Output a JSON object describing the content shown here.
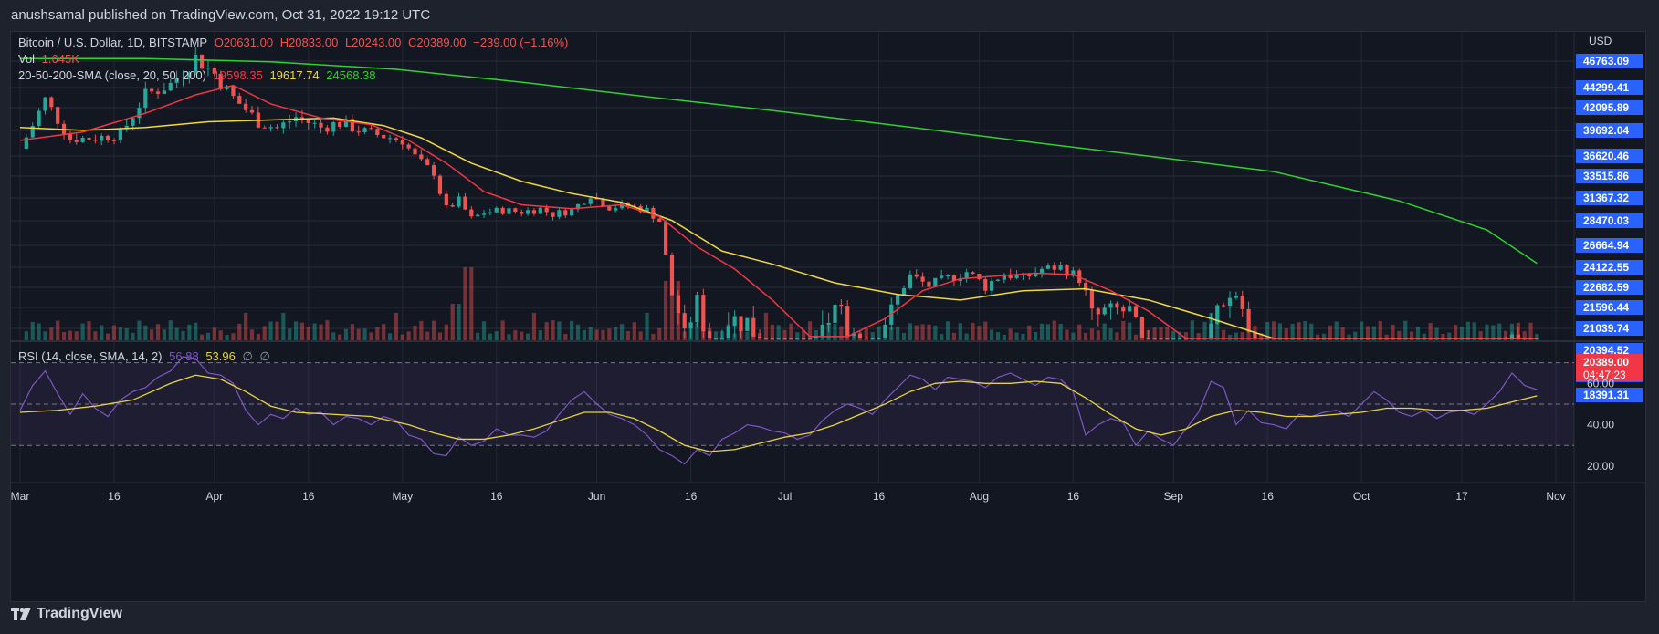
{
  "publish_line": "anushsamal published on TradingView.com, Oct 31, 2022 19:12 UTC",
  "brand": "TradingView",
  "colors": {
    "up": "#26a69a",
    "down": "#ef5350",
    "sma20": "#f23645",
    "sma50": "#f0d93c",
    "sma200": "#2fd22f",
    "rsi": "#7e57c2",
    "rsi_ma": "#e8d43a",
    "price_tag": "#f23645",
    "axis_tag": "#2962ff"
  },
  "legend": {
    "symbol": "Bitcoin / U.S. Dollar, 1D, BITSTAMP",
    "open": "O20631.00",
    "high": "H20833.00",
    "low": "L20243.00",
    "close": "C20389.00",
    "change": "−239.00 (−1.16%)",
    "vol_label": "Vol",
    "vol_value": "1.645K",
    "sma_label": "20-50-200-SMA (close, 20, 50, 200)",
    "sma20_value": "19598.35",
    "sma50_value": "19617.74",
    "sma200_value": "24568.38",
    "rsi_label": "RSI (14, close, SMA, 14, 2)",
    "rsi_value": "56.88",
    "rsi_ma_value": "53.96",
    "rsi_extra1": "∅",
    "rsi_extra2": "∅"
  },
  "chart_data": {
    "type": "candlestick",
    "currency": "USD",
    "last_price": "20389.00",
    "countdown": "04:47:23",
    "price_ticks": [
      "46763.09",
      "44299.41",
      "42095.89",
      "39692.04",
      "36620.46",
      "33515.86",
      "31367.32",
      "28470.03",
      "26664.94",
      "24122.55",
      "22682.59",
      "21596.44",
      "21039.74",
      "20394.52",
      "19544.76",
      "18391.31"
    ],
    "price_tick_values": [
      46763.09,
      44299.41,
      42095.89,
      39692.04,
      36620.46,
      33515.86,
      31367.32,
      28470.03,
      26664.94,
      24122.55,
      22682.59,
      21596.44,
      21039.74,
      20394.52,
      19544.76,
      18391.31
    ],
    "rsi_ticks": [
      "60.00",
      "40.00",
      "20.00"
    ],
    "rsi_tick_values": [
      60,
      40,
      20
    ],
    "rsi_bands": [
      70,
      50,
      30
    ],
    "time_labels": [
      {
        "t": "Mar",
        "d": 0
      },
      {
        "t": "16",
        "d": 15
      },
      {
        "t": "Apr",
        "d": 31
      },
      {
        "t": "16",
        "d": 46
      },
      {
        "t": "May",
        "d": 61
      },
      {
        "t": "16",
        "d": 76
      },
      {
        "t": "Jun",
        "d": 92
      },
      {
        "t": "16",
        "d": 107
      },
      {
        "t": "Jul",
        "d": 122
      },
      {
        "t": "16",
        "d": 137
      },
      {
        "t": "Aug",
        "d": 153
      },
      {
        "t": "16",
        "d": 168
      },
      {
        "t": "Sep",
        "d": 184
      },
      {
        "t": "16",
        "d": 199
      },
      {
        "t": "Oct",
        "d": 214
      },
      {
        "t": "17",
        "d": 230
      },
      {
        "t": "Nov",
        "d": 245
      }
    ],
    "close_path": [
      [
        0,
        37500
      ],
      [
        4,
        43000
      ],
      [
        8,
        38700
      ],
      [
        12,
        38800
      ],
      [
        16,
        39200
      ],
      [
        20,
        43500
      ],
      [
        24,
        44600
      ],
      [
        28,
        47100
      ],
      [
        31,
        45600
      ],
      [
        34,
        43200
      ],
      [
        38,
        40600
      ],
      [
        41,
        39900
      ],
      [
        44,
        41100
      ],
      [
        48,
        40000
      ],
      [
        51,
        40500
      ],
      [
        55,
        39500
      ],
      [
        58,
        39000
      ],
      [
        61,
        38500
      ],
      [
        63,
        36500
      ],
      [
        66,
        34000
      ],
      [
        68,
        30000
      ],
      [
        70,
        31000
      ],
      [
        72,
        28700
      ],
      [
        74,
        29500
      ],
      [
        77,
        29800
      ],
      [
        80,
        29600
      ],
      [
        83,
        30000
      ],
      [
        85,
        29300
      ],
      [
        88,
        29800
      ],
      [
        91,
        31800
      ],
      [
        94,
        30200
      ],
      [
        97,
        30400
      ],
      [
        100,
        29800
      ],
      [
        102,
        28500
      ],
      [
        104,
        22300
      ],
      [
        106,
        20700
      ],
      [
        108,
        22000
      ],
      [
        110,
        20400
      ],
      [
        113,
        21300
      ],
      [
        116,
        21200
      ],
      [
        118,
        20700
      ],
      [
        121,
        20000
      ],
      [
        124,
        19900
      ],
      [
        127,
        20500
      ],
      [
        130,
        21700
      ],
      [
        133,
        20900
      ],
      [
        136,
        20800
      ],
      [
        139,
        21500
      ],
      [
        142,
        23500
      ],
      [
        145,
        22800
      ],
      [
        148,
        23300
      ],
      [
        151,
        23800
      ],
      [
        154,
        22800
      ],
      [
        157,
        23700
      ],
      [
        160,
        23300
      ],
      [
        163,
        24000
      ],
      [
        166,
        24200
      ],
      [
        169,
        23300
      ],
      [
        171,
        21300
      ],
      [
        174,
        21500
      ],
      [
        177,
        21500
      ],
      [
        180,
        20000
      ],
      [
        183,
        19800
      ],
      [
        186,
        19900
      ],
      [
        188,
        19700
      ],
      [
        191,
        21700
      ],
      [
        194,
        22300
      ],
      [
        197,
        20100
      ],
      [
        200,
        19600
      ],
      [
        203,
        18800
      ],
      [
        206,
        19200
      ],
      [
        209,
        19300
      ],
      [
        212,
        19500
      ],
      [
        215,
        19700
      ],
      [
        218,
        19500
      ],
      [
        221,
        19000
      ],
      [
        224,
        19200
      ],
      [
        227,
        19100
      ],
      [
        230,
        19300
      ],
      [
        233,
        19400
      ],
      [
        236,
        20500
      ],
      [
        239,
        20600
      ],
      [
        242,
        20389
      ]
    ],
    "rsi_path": [
      [
        0,
        47
      ],
      [
        2,
        59
      ],
      [
        4,
        66
      ],
      [
        6,
        55
      ],
      [
        8,
        45
      ],
      [
        10,
        55
      ],
      [
        12,
        48
      ],
      [
        14,
        44
      ],
      [
        16,
        52
      ],
      [
        18,
        56
      ],
      [
        20,
        58
      ],
      [
        22,
        63
      ],
      [
        24,
        66
      ],
      [
        26,
        73
      ],
      [
        28,
        72
      ],
      [
        30,
        65
      ],
      [
        32,
        64
      ],
      [
        34,
        60
      ],
      [
        36,
        47
      ],
      [
        38,
        40
      ],
      [
        40,
        45
      ],
      [
        42,
        43
      ],
      [
        44,
        48
      ],
      [
        46,
        45
      ],
      [
        48,
        46
      ],
      [
        50,
        40
      ],
      [
        52,
        44
      ],
      [
        54,
        43
      ],
      [
        56,
        40
      ],
      [
        58,
        44
      ],
      [
        60,
        42
      ],
      [
        62,
        35
      ],
      [
        64,
        33
      ],
      [
        66,
        26
      ],
      [
        68,
        25
      ],
      [
        70,
        34
      ],
      [
        72,
        30
      ],
      [
        74,
        32
      ],
      [
        76,
        38
      ],
      [
        78,
        35
      ],
      [
        80,
        35
      ],
      [
        82,
        34
      ],
      [
        84,
        37
      ],
      [
        86,
        45
      ],
      [
        88,
        52
      ],
      [
        90,
        56
      ],
      [
        92,
        50
      ],
      [
        94,
        45
      ],
      [
        96,
        43
      ],
      [
        98,
        40
      ],
      [
        100,
        35
      ],
      [
        102,
        28
      ],
      [
        104,
        25
      ],
      [
        106,
        21
      ],
      [
        108,
        28
      ],
      [
        110,
        25
      ],
      [
        112,
        33
      ],
      [
        114,
        36
      ],
      [
        116,
        40
      ],
      [
        118,
        39
      ],
      [
        120,
        37
      ],
      [
        122,
        36
      ],
      [
        124,
        33
      ],
      [
        126,
        35
      ],
      [
        128,
        42
      ],
      [
        130,
        47
      ],
      [
        132,
        50
      ],
      [
        134,
        48
      ],
      [
        136,
        45
      ],
      [
        138,
        52
      ],
      [
        140,
        58
      ],
      [
        142,
        64
      ],
      [
        144,
        62
      ],
      [
        146,
        57
      ],
      [
        148,
        63
      ],
      [
        150,
        62
      ],
      [
        152,
        61
      ],
      [
        154,
        58
      ],
      [
        156,
        63
      ],
      [
        158,
        65
      ],
      [
        160,
        62
      ],
      [
        162,
        59
      ],
      [
        164,
        63
      ],
      [
        166,
        62
      ],
      [
        168,
        56
      ],
      [
        170,
        35
      ],
      [
        172,
        40
      ],
      [
        174,
        43
      ],
      [
        176,
        41
      ],
      [
        178,
        30
      ],
      [
        180,
        37
      ],
      [
        182,
        33
      ],
      [
        184,
        30
      ],
      [
        186,
        38
      ],
      [
        188,
        46
      ],
      [
        190,
        61
      ],
      [
        192,
        58
      ],
      [
        194,
        40
      ],
      [
        196,
        47
      ],
      [
        198,
        41
      ],
      [
        200,
        40
      ],
      [
        202,
        38
      ],
      [
        204,
        45
      ],
      [
        206,
        44
      ],
      [
        208,
        46
      ],
      [
        210,
        47
      ],
      [
        212,
        44
      ],
      [
        214,
        50
      ],
      [
        216,
        56
      ],
      [
        218,
        52
      ],
      [
        220,
        46
      ],
      [
        222,
        44
      ],
      [
        224,
        47
      ],
      [
        226,
        43
      ],
      [
        228,
        46
      ],
      [
        230,
        47
      ],
      [
        232,
        45
      ],
      [
        234,
        50
      ],
      [
        236,
        56
      ],
      [
        238,
        65
      ],
      [
        240,
        59
      ],
      [
        242,
        57
      ]
    ],
    "rsi_ma_path": [
      [
        0,
        46
      ],
      [
        6,
        47
      ],
      [
        12,
        49
      ],
      [
        18,
        52
      ],
      [
        24,
        60
      ],
      [
        28,
        64
      ],
      [
        32,
        62
      ],
      [
        36,
        56
      ],
      [
        40,
        49
      ],
      [
        44,
        46
      ],
      [
        50,
        45
      ],
      [
        56,
        44
      ],
      [
        62,
        40
      ],
      [
        66,
        36
      ],
      [
        70,
        33
      ],
      [
        74,
        33
      ],
      [
        78,
        35
      ],
      [
        82,
        38
      ],
      [
        86,
        42
      ],
      [
        90,
        46
      ],
      [
        94,
        46
      ],
      [
        98,
        43
      ],
      [
        102,
        37
      ],
      [
        106,
        30
      ],
      [
        110,
        27
      ],
      [
        114,
        28
      ],
      [
        118,
        31
      ],
      [
        122,
        34
      ],
      [
        126,
        36
      ],
      [
        130,
        40
      ],
      [
        134,
        45
      ],
      [
        138,
        50
      ],
      [
        142,
        56
      ],
      [
        146,
        60
      ],
      [
        150,
        61
      ],
      [
        154,
        60
      ],
      [
        158,
        60
      ],
      [
        162,
        61
      ],
      [
        166,
        60
      ],
      [
        170,
        53
      ],
      [
        174,
        45
      ],
      [
        178,
        38
      ],
      [
        182,
        35
      ],
      [
        186,
        38
      ],
      [
        190,
        44
      ],
      [
        194,
        47
      ],
      [
        198,
        46
      ],
      [
        202,
        44
      ],
      [
        206,
        44
      ],
      [
        210,
        45
      ],
      [
        214,
        46
      ],
      [
        218,
        48
      ],
      [
        222,
        48
      ],
      [
        226,
        47
      ],
      [
        230,
        47
      ],
      [
        234,
        48
      ],
      [
        238,
        51
      ],
      [
        242,
        54
      ]
    ],
    "sma20_path": [
      [
        0,
        38500
      ],
      [
        10,
        39500
      ],
      [
        20,
        41500
      ],
      [
        28,
        43500
      ],
      [
        34,
        44500
      ],
      [
        40,
        42500
      ],
      [
        48,
        41000
      ],
      [
        56,
        40300
      ],
      [
        62,
        38500
      ],
      [
        68,
        35500
      ],
      [
        74,
        32000
      ],
      [
        80,
        30500
      ],
      [
        88,
        30000
      ],
      [
        96,
        30500
      ],
      [
        102,
        29000
      ],
      [
        108,
        26500
      ],
      [
        114,
        24000
      ],
      [
        120,
        22000
      ],
      [
        126,
        20800
      ],
      [
        132,
        20800
      ],
      [
        138,
        21300
      ],
      [
        144,
        22500
      ],
      [
        150,
        23300
      ],
      [
        156,
        23500
      ],
      [
        162,
        23700
      ],
      [
        168,
        23600
      ],
      [
        174,
        22500
      ],
      [
        180,
        21500
      ],
      [
        186,
        20600
      ],
      [
        192,
        20600
      ],
      [
        198,
        20300
      ],
      [
        204,
        19800
      ],
      [
        210,
        19600
      ],
      [
        216,
        19500
      ],
      [
        222,
        19500
      ],
      [
        228,
        19300
      ],
      [
        234,
        19350
      ],
      [
        242,
        19598
      ]
    ],
    "sma50_path": [
      [
        0,
        40000
      ],
      [
        10,
        39700
      ],
      [
        20,
        40000
      ],
      [
        30,
        40600
      ],
      [
        40,
        40800
      ],
      [
        50,
        41000
      ],
      [
        58,
        40200
      ],
      [
        64,
        38800
      ],
      [
        72,
        35500
      ],
      [
        80,
        33000
      ],
      [
        88,
        31800
      ],
      [
        96,
        30800
      ],
      [
        104,
        28500
      ],
      [
        112,
        26000
      ],
      [
        120,
        24500
      ],
      [
        130,
        23000
      ],
      [
        140,
        22300
      ],
      [
        150,
        22000
      ],
      [
        160,
        22500
      ],
      [
        170,
        22600
      ],
      [
        180,
        22000
      ],
      [
        190,
        21300
      ],
      [
        200,
        20500
      ],
      [
        210,
        20000
      ],
      [
        220,
        19700
      ],
      [
        230,
        19550
      ],
      [
        242,
        19617
      ]
    ],
    "sma200_path": [
      [
        0,
        47000
      ],
      [
        20,
        47000
      ],
      [
        40,
        46700
      ],
      [
        60,
        46000
      ],
      [
        80,
        44800
      ],
      [
        100,
        43300
      ],
      [
        120,
        41800
      ],
      [
        140,
        40200
      ],
      [
        160,
        38400
      ],
      [
        180,
        36600
      ],
      [
        200,
        34200
      ],
      [
        220,
        31000
      ],
      [
        234,
        27800
      ],
      [
        242,
        24568
      ]
    ]
  }
}
